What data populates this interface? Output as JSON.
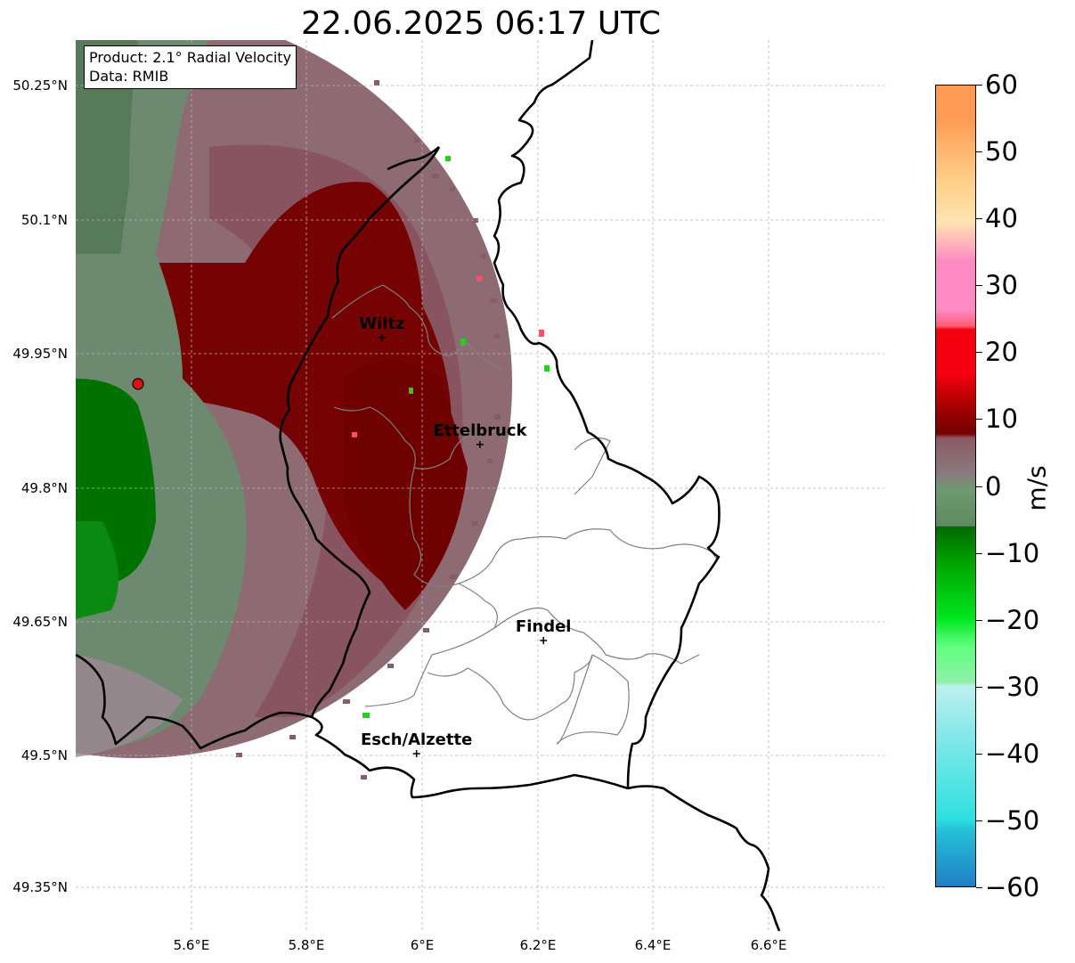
{
  "title": "22.06.2025 06:17 UTC",
  "info": {
    "product": "Product: 2.1° Radial Velocity",
    "source": "Data: RMIB"
  },
  "lat_ticks": [
    "50.25°N",
    "50.1°N",
    "49.95°N",
    "49.8°N",
    "49.65°N",
    "49.5°N",
    "49.35°N"
  ],
  "lon_ticks": [
    "5.6°E",
    "5.8°E",
    "6°E",
    "6.2°E",
    "6.4°E",
    "6.6°E"
  ],
  "cities": [
    {
      "name": "Wiltz",
      "lon": 5.93,
      "lat": 49.967
    },
    {
      "name": "Ettelbruck",
      "lon": 6.1,
      "lat": 49.847
    },
    {
      "name": "Findel",
      "lon": 6.21,
      "lat": 49.627
    },
    {
      "name": "Esch/Alzette",
      "lon": 5.99,
      "lat": 49.5
    }
  ],
  "radar_site": {
    "lon": 5.505,
    "lat": 49.914
  },
  "colorbar": {
    "label": "m/s",
    "min": -60,
    "max": 60,
    "ticks": [
      "60",
      "50",
      "40",
      "30",
      "20",
      "10",
      "0",
      "−10",
      "−20",
      "−30",
      "−40",
      "−50",
      "−60"
    ],
    "colors": {
      "outbound_strong": "#fe9a52",
      "outbound_pink": "#ff8ac4",
      "outbound_red": "#f4000f",
      "outbound_dark": "#7a0000",
      "near_zero_pos": "#8b5a63",
      "near_zero": "#8a7a80",
      "near_zero_neg": "#5f8a60",
      "inbound_dark": "#006b00",
      "inbound_green": "#00e61e",
      "inbound_light": "#8ff0a8",
      "inbound_cyan": "#2ee0e0",
      "inbound_blue": "#1f7fc4"
    }
  }
}
